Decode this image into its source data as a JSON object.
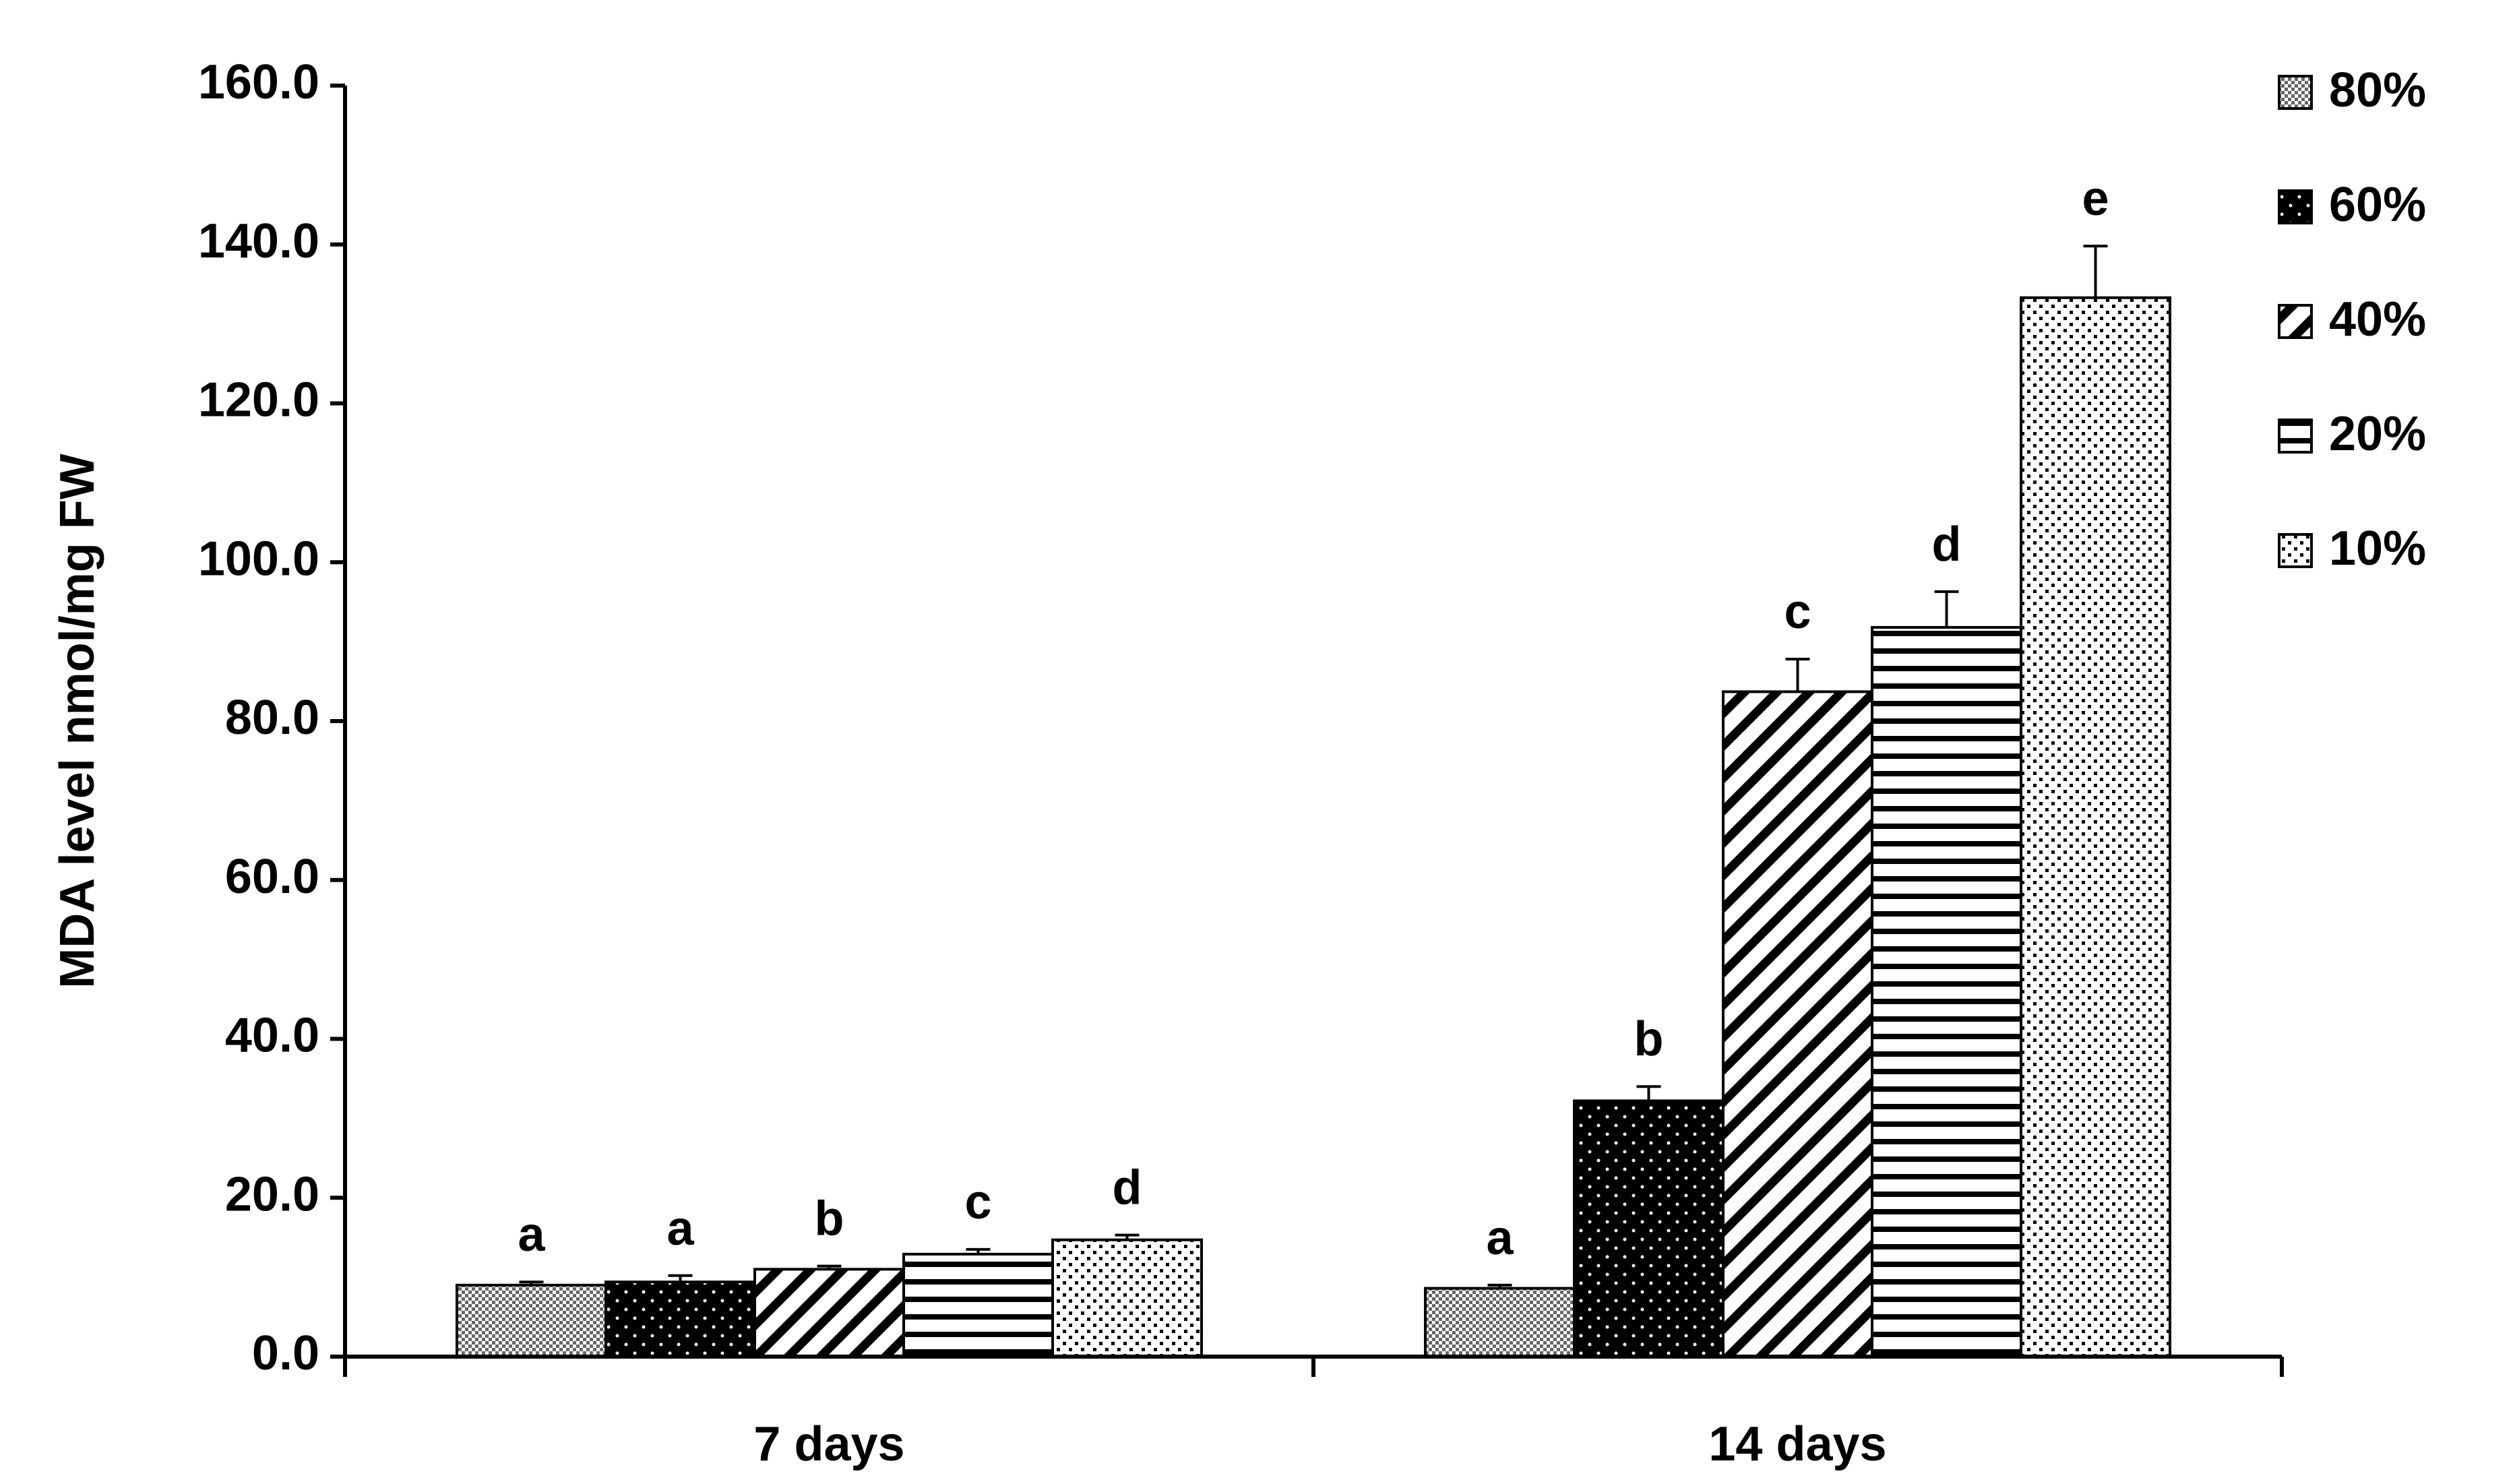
{
  "chart_data": {
    "type": "bar",
    "y_label": "MDA level nmol/mg FW",
    "categories": [
      "7 days",
      "14 days"
    ],
    "series": [
      {
        "name": "80%",
        "color": "#000000",
        "pattern": "checker",
        "values": [
          9.0,
          8.6
        ],
        "errors": [
          0.4,
          0.4
        ],
        "letters": [
          "a",
          "a"
        ]
      },
      {
        "name": "60%",
        "color": "#000000",
        "pattern": "dots",
        "values": [
          9.4,
          32.2
        ],
        "errors": [
          0.8,
          1.8
        ],
        "letters": [
          "a",
          "b"
        ]
      },
      {
        "name": "40%",
        "color": "#000000",
        "pattern": "diagonal",
        "values": [
          11.0,
          83.7
        ],
        "errors": [
          0.4,
          4.1
        ],
        "letters": [
          "b",
          "c"
        ]
      },
      {
        "name": "20%",
        "color": "#000000",
        "pattern": "horizontal",
        "values": [
          12.9,
          91.8
        ],
        "errors": [
          0.6,
          4.5
        ],
        "letters": [
          "c",
          "d"
        ]
      },
      {
        "name": "10%",
        "color": "#000000",
        "pattern": "speckle",
        "values": [
          14.7,
          133.3
        ],
        "errors": [
          0.6,
          6.5
        ],
        "letters": [
          "d",
          "e"
        ]
      }
    ],
    "ylim": [
      0,
      160
    ],
    "yticks": [
      {
        "value": 0,
        "label": "0.0"
      },
      {
        "value": 20,
        "label": "20.0"
      },
      {
        "value": 40,
        "label": "40.0"
      },
      {
        "value": 60,
        "label": "60.0"
      },
      {
        "value": 80,
        "label": "80.0"
      },
      {
        "value": 100,
        "label": "100.0"
      },
      {
        "value": 120,
        "label": "120.0"
      },
      {
        "value": 140,
        "label": "140.0"
      },
      {
        "value": 160,
        "label": "160.0"
      }
    ],
    "legend": "right",
    "grid": false
  }
}
